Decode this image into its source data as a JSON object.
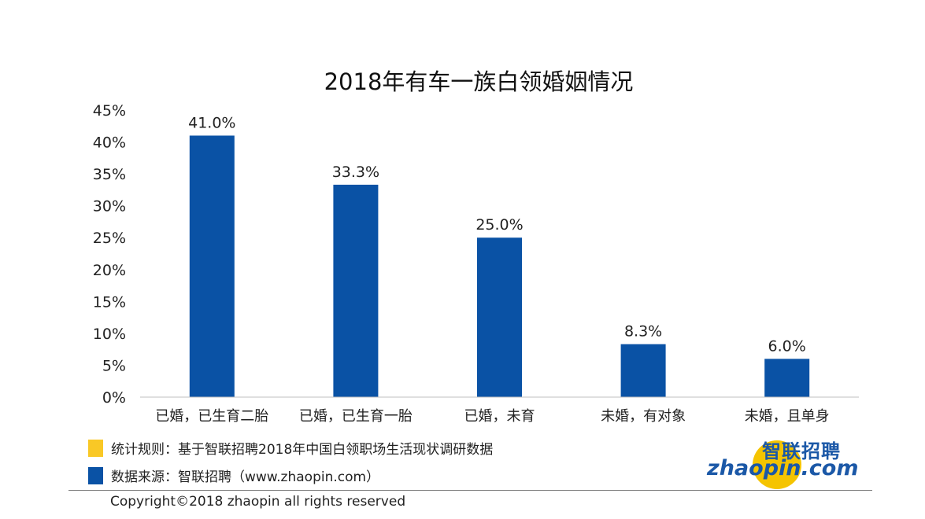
{
  "chart_data": {
    "type": "bar",
    "title": "2018年有车一族白领婚姻情况",
    "categories": [
      "已婚，已生育二胎",
      "已婚，已生育一胎",
      "已婚，未育",
      "未婚，有对象",
      "未婚，且单身"
    ],
    "values": [
      41.0,
      33.3,
      25.0,
      8.3,
      6.0
    ],
    "value_labels": [
      "41.0%",
      "33.3%",
      "25.0%",
      "8.3%",
      "6.0%"
    ],
    "ylim": [
      0,
      45
    ],
    "yticks": [
      "0%",
      "5%",
      "10%",
      "15%",
      "20%",
      "25%",
      "30%",
      "35%",
      "40%",
      "45%"
    ],
    "grid": false,
    "bar_color": "#0a52a5"
  },
  "legend": [
    {
      "color": "#f9c826",
      "label": "统计规则：基于智联招聘2018年中国白领职场生活现状调研数据"
    },
    {
      "color": "#0a52a5",
      "label": "数据来源：智联招聘（www.zhaopin.com）"
    }
  ],
  "logo": {
    "cn": "智联招聘",
    "en": "zhaopin.com"
  },
  "footer": {
    "copyright": "Copyright©2018 zhaopin all rights reserved"
  }
}
